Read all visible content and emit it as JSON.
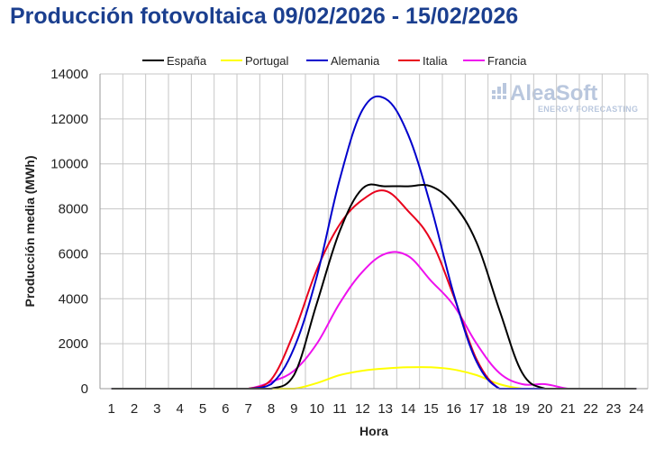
{
  "chart_data": {
    "type": "line",
    "title": "Producción fotovoltaica 09/02/2026 - 15/02/2026",
    "xlabel": "Hora",
    "ylabel": "Producción media (MWh)",
    "ylim": [
      0,
      14000
    ],
    "yticks": [
      "0",
      "2000",
      "4000",
      "6000",
      "8000",
      "10000",
      "12000",
      "14000"
    ],
    "x": [
      1,
      2,
      3,
      4,
      5,
      6,
      7,
      8,
      9,
      10,
      11,
      12,
      13,
      14,
      15,
      16,
      17,
      18,
      19,
      20,
      21,
      22,
      23,
      24
    ],
    "xticks": [
      "1",
      "2",
      "3",
      "4",
      "5",
      "6",
      "7",
      "8",
      "9",
      "10",
      "11",
      "12",
      "13",
      "14",
      "15",
      "16",
      "17",
      "18",
      "19",
      "20",
      "21",
      "22",
      "23",
      "24"
    ],
    "grid": true,
    "legend_position": "top",
    "series": [
      {
        "name": "España",
        "color": "#000000",
        "values": [
          0,
          0,
          0,
          0,
          0,
          0,
          0,
          0,
          600,
          3800,
          7000,
          8900,
          9000,
          9000,
          9000,
          8200,
          6500,
          3500,
          700,
          0,
          0,
          0,
          0,
          0
        ]
      },
      {
        "name": "Portugal",
        "color": "#ffff00",
        "values": [
          0,
          0,
          0,
          0,
          0,
          0,
          0,
          0,
          0,
          250,
          600,
          800,
          900,
          950,
          950,
          850,
          600,
          200,
          0,
          0,
          0,
          0,
          0,
          0
        ]
      },
      {
        "name": "Alemania",
        "color": "#0000cc",
        "values": [
          0,
          0,
          0,
          0,
          0,
          0,
          0,
          200,
          1800,
          5000,
          9300,
          12400,
          12900,
          11300,
          8100,
          4200,
          1200,
          0,
          0,
          0,
          0,
          0,
          0,
          0
        ]
      },
      {
        "name": "Italia",
        "color": "#e8001c",
        "values": [
          0,
          0,
          0,
          0,
          0,
          0,
          0,
          400,
          2500,
          5300,
          7300,
          8400,
          8800,
          7900,
          6600,
          4100,
          1300,
          0,
          0,
          0,
          0,
          0,
          0,
          0
        ]
      },
      {
        "name": "Francia",
        "color": "#ee11ee",
        "values": [
          0,
          0,
          0,
          0,
          0,
          0,
          0,
          300,
          800,
          2000,
          3800,
          5200,
          6000,
          5900,
          4800,
          3700,
          2000,
          700,
          200,
          200,
          0,
          0,
          0,
          0
        ]
      }
    ]
  },
  "watermark": {
    "brand": "AleaSoft",
    "tagline": "ENERGY FORECASTING"
  }
}
